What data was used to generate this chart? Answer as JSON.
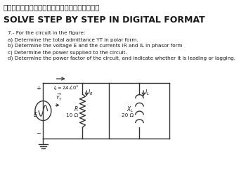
{
  "title_jp": "デジタル形式で段階的に解決　　ありがとう！！",
  "title_en": "SOLVE STEP BY STEP IN DIGITAL FORMAT",
  "problem_number": "7.- For the circuit in the figure:",
  "part_a": "a) Determine the total admittance YT in polar form.",
  "part_b": "b) Determine the voltage E and the currents IR and IL in phasor form",
  "part_c": "c) Determine the power supplied to the circuit.",
  "part_d": "d) Determine the power factor of the circuit, and indicate whether it is leading or lagging.",
  "current_label": "$I_s = 2A\\angle 0°$",
  "ir_label": "$I_R$",
  "il_label": "$I_L$",
  "e_label": "E",
  "r_label": "R",
  "r_value": "10 Ω",
  "xl_label": "$X_L$",
  "xl_value": "20 Ω",
  "bg_color": "#ffffff",
  "text_color": "#1a1a1a",
  "circuit_color": "#333333"
}
